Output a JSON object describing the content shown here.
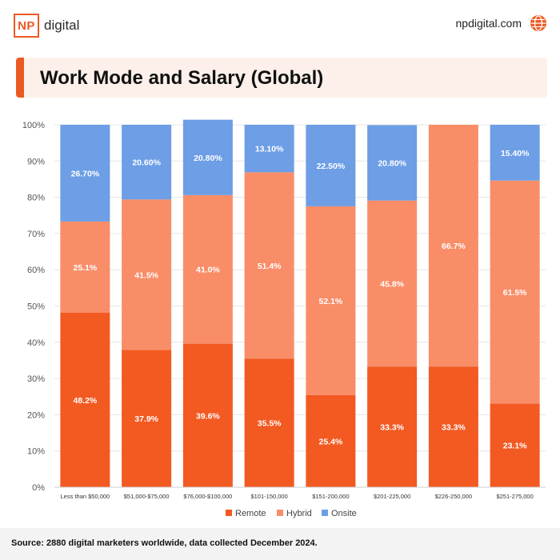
{
  "brand": {
    "logo_mark": "NP",
    "logo_text": "digital",
    "site": "npdigital.com",
    "site_icon": "globe-icon"
  },
  "title": "Work Mode and Salary (Global)",
  "source": "Source: 2880 digital marketers worldwide, data collected December 2024.",
  "colors": {
    "remote": "#f25a22",
    "hybrid": "#f98d68",
    "onsite": "#6d9ee6",
    "accent": "#ec5a24"
  },
  "chart_data": {
    "type": "bar",
    "stacked": true,
    "categories": [
      "Less than $50,000",
      "$51,000-$75,000",
      "$76,000-$100,000",
      "$101-150,000",
      "$151-200,000",
      "$201-225,000",
      "$226-250,000",
      "$251-275,000"
    ],
    "series": [
      {
        "name": "Remote",
        "values": [
          48.2,
          37.9,
          39.6,
          35.5,
          25.4,
          33.3,
          33.3,
          23.1
        ],
        "labels": [
          "48.2%",
          "37.9%",
          "39.6%",
          "35.5%",
          "25.4%",
          "33.3%",
          "33.3%",
          "23.1%"
        ]
      },
      {
        "name": "Hybrid",
        "values": [
          25.1,
          41.5,
          41.0,
          51.4,
          52.1,
          45.8,
          66.7,
          61.5
        ],
        "labels": [
          "25.1%",
          "41.5%",
          "41.0%",
          "51.4%",
          "52.1%",
          "45.8%",
          "66.7%",
          "61.5%"
        ]
      },
      {
        "name": "Onsite",
        "values": [
          26.7,
          20.6,
          20.8,
          13.1,
          22.5,
          20.8,
          0,
          15.4
        ],
        "labels": [
          "26.70%",
          "20.60%",
          "20.80%",
          "13.10%",
          "22.50%",
          "20.80%",
          "",
          "15.40%"
        ]
      }
    ],
    "y_ticks": [
      "0%",
      "10%",
      "20%",
      "30%",
      "40%",
      "50%",
      "60%",
      "70%",
      "80%",
      "90%",
      "100%"
    ],
    "ylim": [
      0,
      100
    ],
    "grid": true,
    "legend": "bottom"
  }
}
